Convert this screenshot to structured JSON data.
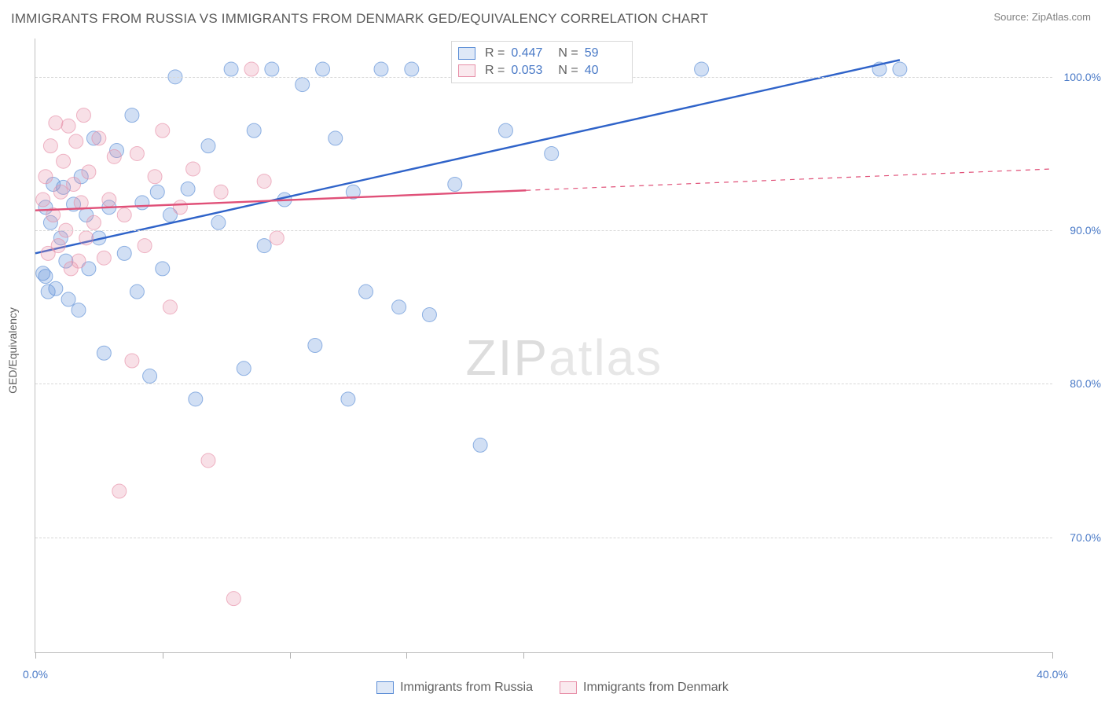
{
  "title": "IMMIGRANTS FROM RUSSIA VS IMMIGRANTS FROM DENMARK GED/EQUIVALENCY CORRELATION CHART",
  "source": "Source: ZipAtlas.com",
  "y_axis_label": "GED/Equivalency",
  "watermark": {
    "part1": "ZIP",
    "part2": "atlas"
  },
  "chart": {
    "type": "scatter",
    "background_color": "#ffffff",
    "grid_color": "#d8d8d8",
    "axis_color": "#c0c0c0",
    "label_color": "#4a7ac7",
    "text_color": "#606060",
    "xlim": [
      0,
      40
    ],
    "ylim": [
      62.5,
      102.5
    ],
    "x_ticks": [
      0,
      5,
      10,
      14.6,
      19.2,
      40
    ],
    "x_tick_labels": {
      "0": "0.0%",
      "40": "40.0%"
    },
    "y_ticks": [
      70,
      80,
      90,
      100
    ],
    "y_tick_labels": {
      "70": "70.0%",
      "80": "80.0%",
      "90": "90.0%",
      "100": "100.0%"
    },
    "marker_radius": 9,
    "marker_fill_opacity": 0.28,
    "marker_stroke_opacity": 0.65,
    "marker_stroke_width": 1,
    "line_width": 2.4,
    "line_width_dash": 1.2,
    "series": [
      {
        "id": "russia",
        "label": "Immigrants from Russia",
        "color": "#5b8dd6",
        "line_color": "#2f63c9",
        "R": "0.447",
        "N": "59",
        "trend": {
          "x1": 0,
          "y1": 88.5,
          "x2": 34,
          "y2": 101.1,
          "solid_to_x": 34
        },
        "points": [
          [
            0.3,
            87.2
          ],
          [
            0.4,
            91.5
          ],
          [
            0.5,
            86.0
          ],
          [
            0.6,
            90.5
          ],
          [
            0.7,
            93.0
          ],
          [
            0.8,
            86.2
          ],
          [
            1.0,
            89.5
          ],
          [
            1.1,
            92.8
          ],
          [
            1.2,
            88.0
          ],
          [
            1.3,
            85.5
          ],
          [
            1.5,
            91.7
          ],
          [
            1.7,
            84.8
          ],
          [
            1.8,
            93.5
          ],
          [
            2.0,
            91.0
          ],
          [
            2.1,
            87.5
          ],
          [
            2.3,
            96.0
          ],
          [
            2.5,
            89.5
          ],
          [
            2.7,
            82.0
          ],
          [
            2.9,
            91.5
          ],
          [
            3.2,
            95.2
          ],
          [
            3.5,
            88.5
          ],
          [
            3.8,
            97.5
          ],
          [
            4.0,
            86.0
          ],
          [
            4.2,
            91.8
          ],
          [
            4.5,
            80.5
          ],
          [
            4.8,
            92.5
          ],
          [
            5.0,
            87.5
          ],
          [
            5.3,
            91.0
          ],
          [
            5.5,
            100.0
          ],
          [
            6.0,
            92.7
          ],
          [
            6.3,
            79.0
          ],
          [
            6.8,
            95.5
          ],
          [
            7.2,
            90.5
          ],
          [
            7.7,
            100.5
          ],
          [
            8.2,
            81.0
          ],
          [
            8.6,
            96.5
          ],
          [
            9.0,
            89.0
          ],
          [
            9.3,
            100.5
          ],
          [
            9.8,
            92.0
          ],
          [
            10.5,
            99.5
          ],
          [
            11.0,
            82.5
          ],
          [
            11.3,
            100.5
          ],
          [
            11.8,
            96.0
          ],
          [
            12.3,
            79.0
          ],
          [
            12.5,
            92.5
          ],
          [
            13.0,
            86.0
          ],
          [
            13.6,
            100.5
          ],
          [
            14.3,
            85.0
          ],
          [
            14.8,
            100.5
          ],
          [
            15.5,
            84.5
          ],
          [
            16.5,
            93.0
          ],
          [
            17.5,
            76.0
          ],
          [
            18.5,
            96.5
          ],
          [
            19.3,
            100.5
          ],
          [
            20.3,
            95.0
          ],
          [
            26.2,
            100.5
          ],
          [
            33.2,
            100.5
          ],
          [
            34.0,
            100.5
          ],
          [
            0.4,
            87.0
          ]
        ]
      },
      {
        "id": "denmark",
        "label": "Immigrants from Denmark",
        "color": "#e78fa8",
        "line_color": "#e05078",
        "R": "0.053",
        "N": "40",
        "trend": {
          "x1": 0,
          "y1": 91.3,
          "x2": 40,
          "y2": 94.0,
          "solid_to_x": 19.3
        },
        "points": [
          [
            0.3,
            92.0
          ],
          [
            0.4,
            93.5
          ],
          [
            0.5,
            88.5
          ],
          [
            0.6,
            95.5
          ],
          [
            0.7,
            91.0
          ],
          [
            0.8,
            97.0
          ],
          [
            0.9,
            89.0
          ],
          [
            1.0,
            92.5
          ],
          [
            1.1,
            94.5
          ],
          [
            1.2,
            90.0
          ],
          [
            1.3,
            96.8
          ],
          [
            1.4,
            87.5
          ],
          [
            1.5,
            93.0
          ],
          [
            1.6,
            95.8
          ],
          [
            1.7,
            88.0
          ],
          [
            1.8,
            91.8
          ],
          [
            1.9,
            97.5
          ],
          [
            2.0,
            89.5
          ],
          [
            2.1,
            93.8
          ],
          [
            2.3,
            90.5
          ],
          [
            2.5,
            96.0
          ],
          [
            2.7,
            88.2
          ],
          [
            2.9,
            92.0
          ],
          [
            3.1,
            94.8
          ],
          [
            3.3,
            73.0
          ],
          [
            3.5,
            91.0
          ],
          [
            3.8,
            81.5
          ],
          [
            4.0,
            95.0
          ],
          [
            4.3,
            89.0
          ],
          [
            4.7,
            93.5
          ],
          [
            5.0,
            96.5
          ],
          [
            5.3,
            85.0
          ],
          [
            5.7,
            91.5
          ],
          [
            6.2,
            94.0
          ],
          [
            6.8,
            75.0
          ],
          [
            7.3,
            92.5
          ],
          [
            7.8,
            66.0
          ],
          [
            8.5,
            100.5
          ],
          [
            9.0,
            93.2
          ],
          [
            9.5,
            89.5
          ]
        ]
      }
    ]
  },
  "legend_top": [
    {
      "series": "russia",
      "r_label": "R =",
      "n_label": "N ="
    },
    {
      "series": "denmark",
      "r_label": "R =",
      "n_label": "N ="
    }
  ]
}
